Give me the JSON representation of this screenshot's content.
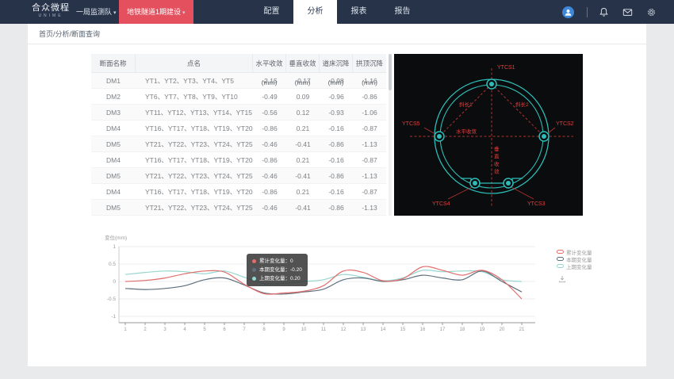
{
  "icons": {
    "caret_down": "▾"
  },
  "colors": {
    "navbar_bg": "#263349",
    "project_button": "#e4505e",
    "avatar": "#3f87d9",
    "diagram_circle": "#2cbdb7",
    "diagram_red": "#c23434",
    "diagram_label": "#e04040"
  },
  "navbar": {
    "logo_title": "合众微程",
    "logo_subtitle": "UNIME",
    "team_dropdown": "一局监测队",
    "project_dropdown": "地铁隧道1期建设",
    "nav_items": [
      "配置",
      "分析",
      "报表",
      "报告"
    ],
    "active_nav": "分析"
  },
  "breadcrumb": "首页/分析/断面查询",
  "table": {
    "columns": [
      "断面名称",
      "点名",
      "水平收敛(mm)",
      "垂直收敛(mm)",
      "道床沉降(mm)",
      "拱顶沉降(mm)"
    ],
    "rows": [
      [
        "DM1",
        "YT1、YT2、YT3、YT4、YT5",
        "-2.15",
        "-0.17",
        "-0.98",
        "-1.16"
      ],
      [
        "DM2",
        "YT6、YT7、YT8、YT9、YT10",
        "-0.49",
        "0.09",
        "-0.96",
        "-0.86"
      ],
      [
        "DM3",
        "YT11、YT12、YT13、YT14、YT15",
        "-0.56",
        "0.12",
        "-0.93",
        "-1.06"
      ],
      [
        "DM4",
        "YT16、YT17、YT18、YT19、YT20",
        "-0.86",
        "0.21",
        "-0.16",
        "-0.87"
      ],
      [
        "DM5",
        "YT21、YT22、YT23、YT24、YT25",
        "-0.46",
        "-0.41",
        "-0.86",
        "-1.13"
      ],
      [
        "DM4",
        "YT16、YT17、YT18、YT19、YT20",
        "-0.86",
        "0.21",
        "-0.16",
        "-0.87"
      ],
      [
        "DM5",
        "YT21、YT22、YT23、YT24、YT25",
        "-0.46",
        "-0.41",
        "-0.86",
        "-1.13"
      ],
      [
        "DM4",
        "YT16、YT17、YT18、YT19、YT20",
        "-0.86",
        "0.21",
        "-0.16",
        "-0.87"
      ],
      [
        "DM5",
        "YT21、YT22、YT23、YT24、YT25",
        "-0.46",
        "-0.41",
        "-0.86",
        "-1.13"
      ]
    ]
  },
  "diagram": {
    "points": {
      "top": "YTCS1",
      "right": "YTCS2",
      "bottom_right": "YTCS3",
      "bottom_left": "YTCS4",
      "left": "YTCS5"
    },
    "labels": {
      "horizontal": "水平收敛",
      "vertical": "垂直收敛",
      "diag1": "斜长1",
      "diag2": "斜长2"
    }
  },
  "chart_data": {
    "type": "line",
    "ylabel": "变位(mm)",
    "ylim": [
      -1,
      1
    ],
    "yticks": [
      1,
      0.5,
      0,
      -0.5,
      -1
    ],
    "x": [
      1,
      2,
      3,
      4,
      5,
      6,
      7,
      8,
      9,
      10,
      11,
      12,
      13,
      14,
      15,
      16,
      17,
      18,
      19,
      20,
      21
    ],
    "grid": true,
    "legend_position": "right",
    "series": [
      {
        "name": "累计变化量",
        "color": "#e26d6d",
        "values": [
          0,
          0.03,
          0.1,
          0.22,
          0.3,
          0.27,
          -0.08,
          -0.35,
          -0.33,
          -0.28,
          -0.12,
          0.3,
          0.26,
          0.02,
          0.08,
          0.42,
          0.32,
          0.18,
          0.32,
          0.05,
          -0.5
        ]
      },
      {
        "name": "本期变化量",
        "color": "#5f6f7d",
        "values": [
          -0.2,
          -0.23,
          -0.2,
          -0.12,
          0.05,
          0.1,
          -0.1,
          -0.33,
          -0.36,
          -0.3,
          -0.22,
          0.05,
          0.1,
          0,
          0.05,
          0.18,
          0.1,
          0.05,
          0.3,
          0,
          -0.3
        ]
      },
      {
        "name": "上期变化量",
        "color": "#97d6d0",
        "values": [
          0.2,
          0.26,
          0.3,
          0.28,
          0.22,
          0.3,
          0.12,
          -0.06,
          -0.05,
          0,
          0.05,
          0.2,
          0.12,
          0.02,
          0.1,
          0.32,
          0.28,
          0.3,
          0.28,
          0.05,
          0
        ]
      }
    ],
    "tooltip": {
      "rows": [
        {
          "series": "累计变化量",
          "value": "0"
        },
        {
          "series": "本期变化量",
          "value": "-0.20"
        },
        {
          "series": "上期变化量",
          "value": "0.20"
        }
      ]
    }
  }
}
